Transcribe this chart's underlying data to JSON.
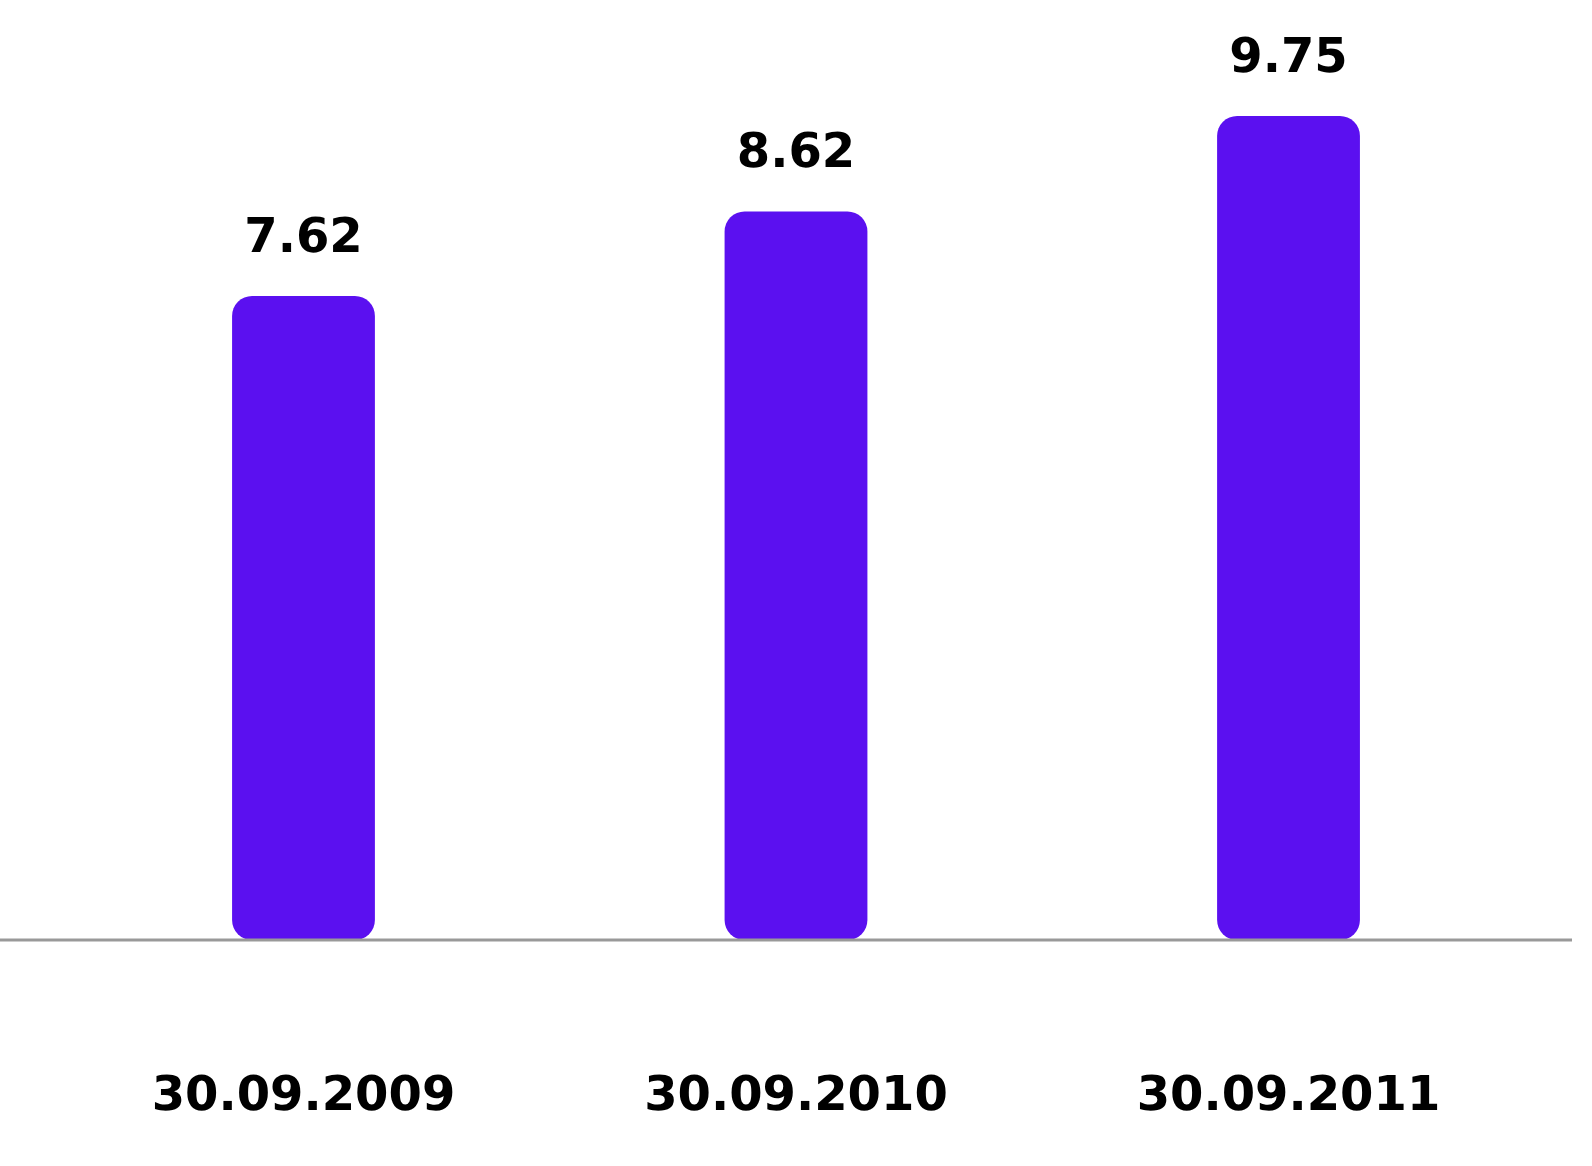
{
  "chart_data": {
    "type": "bar",
    "categories": [
      "30.09.2009",
      "30.09.2010",
      "30.09.2011"
    ],
    "values": [
      7.62,
      8.62,
      9.75
    ],
    "color": "#5b10f0",
    "data_labels": true,
    "tick_labels": "x"
  }
}
